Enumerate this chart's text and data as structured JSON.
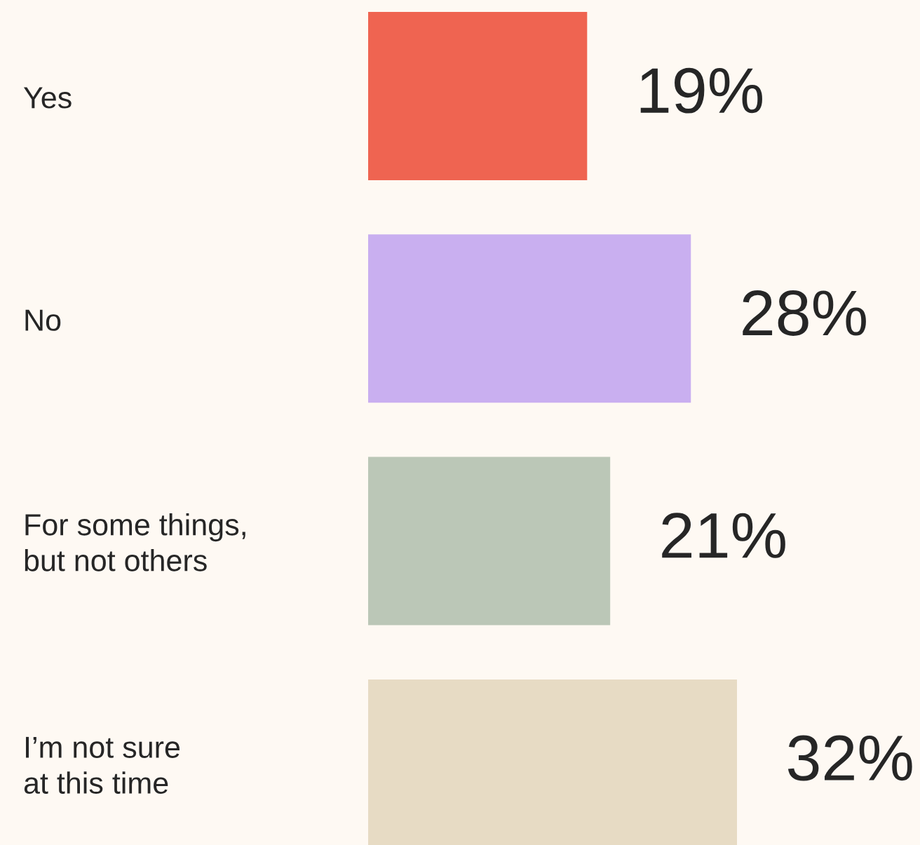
{
  "chart_data": {
    "type": "bar",
    "orientation": "horizontal",
    "categories": [
      "Yes",
      "No",
      "For some things,\nbut not others",
      "I’m not sure\nat this time"
    ],
    "values": [
      19,
      28,
      21,
      32
    ],
    "colors": [
      "#ef6451",
      "#c9aff0",
      "#bbc7b7",
      "#e7dbc4"
    ],
    "value_labels": [
      "19%",
      "28%",
      "21%",
      "32%"
    ]
  }
}
